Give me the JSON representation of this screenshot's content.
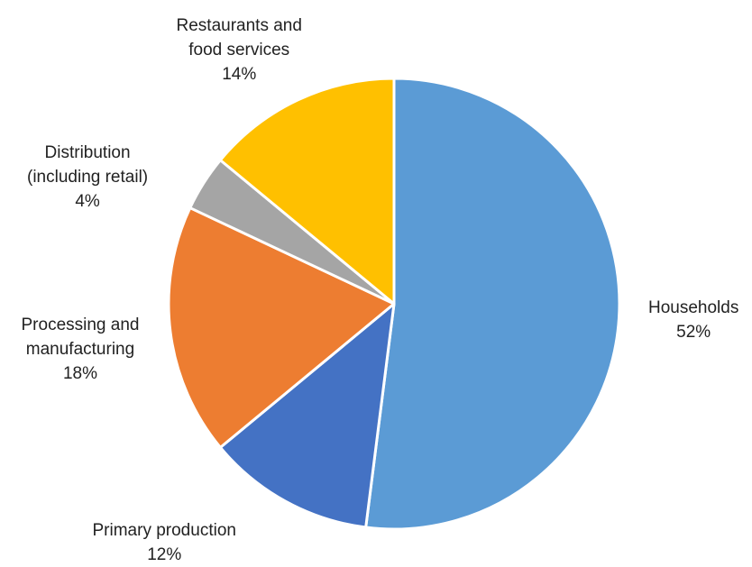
{
  "chart_data": {
    "type": "pie",
    "title": "",
    "slices": [
      {
        "name": "Households",
        "value": 52,
        "percent_label": "52%",
        "color": "#5B9BD5"
      },
      {
        "name": "Primary production",
        "value": 12,
        "percent_label": "12%",
        "color": "#4472C4"
      },
      {
        "name": "Processing and\nmanufacturing",
        "value": 18,
        "percent_label": "18%",
        "color": "#ED7D31"
      },
      {
        "name": "Distribution\n(including retail)",
        "value": 4,
        "percent_label": "4%",
        "color": "#A5A5A5"
      },
      {
        "name": "Restaurants and\nfood services",
        "value": 14,
        "percent_label": "14%",
        "color": "#FFC000"
      }
    ],
    "start_angle_deg": 0,
    "direction": "clockwise",
    "slice_border_color": "#FFFFFF",
    "legend": "none",
    "data_labels": "outside"
  }
}
